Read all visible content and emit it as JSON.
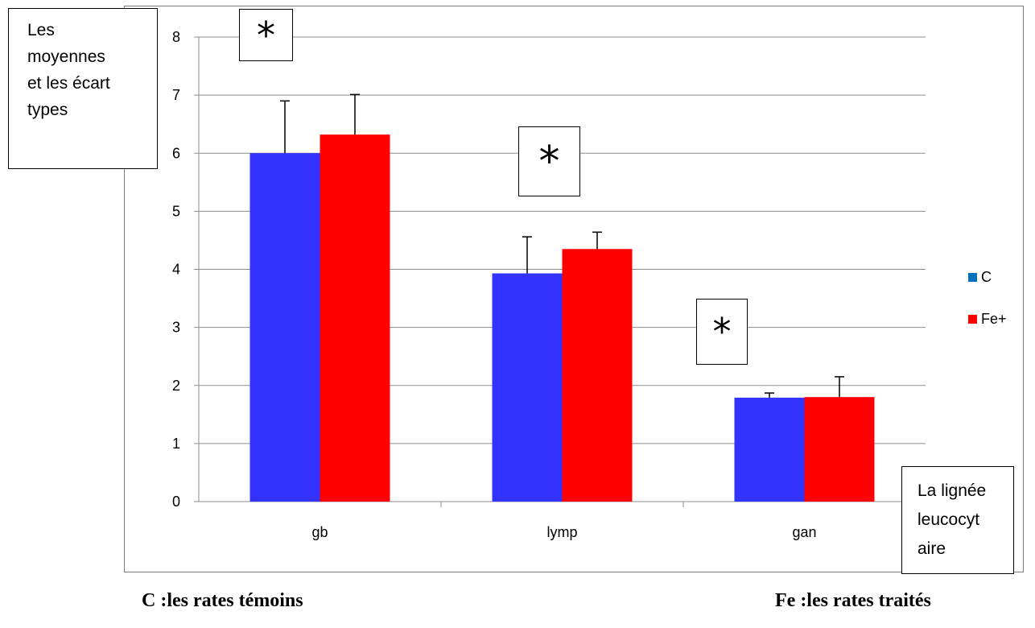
{
  "chart_data": {
    "type": "bar",
    "categories": [
      "gb",
      "lymp",
      "gan"
    ],
    "series": [
      {
        "name": "C",
        "color": "#3333ff",
        "legend_color": "#0070c0",
        "values": [
          6.0,
          3.93,
          1.79
        ],
        "errors": [
          0.9,
          0.63,
          0.08
        ]
      },
      {
        "name": "Fe+",
        "color": "#ff0000",
        "legend_color": "#ff0000",
        "values": [
          6.32,
          4.35,
          1.8
        ],
        "errors": [
          0.69,
          0.29,
          0.35
        ]
      }
    ],
    "ylim": [
      0,
      8
    ],
    "yticks": [
      "0",
      "1",
      "2",
      "3",
      "4",
      "5",
      "6",
      "7",
      "8"
    ],
    "ylabel": "Les moyennes et les écart types",
    "ylabel_lines": [
      "Les",
      "moyennes",
      "et les écart",
      "types"
    ],
    "xlabel": "La lignée leucocytaire",
    "xlabel_lines": [
      "La lignée",
      "leucocyt",
      "aire"
    ],
    "grid": true,
    "legend_position": "right",
    "annotations": [
      "*",
      "*",
      "*"
    ]
  },
  "footnotes": {
    "left": "C :les rates témoins",
    "right": "Fe :les rates traités"
  }
}
